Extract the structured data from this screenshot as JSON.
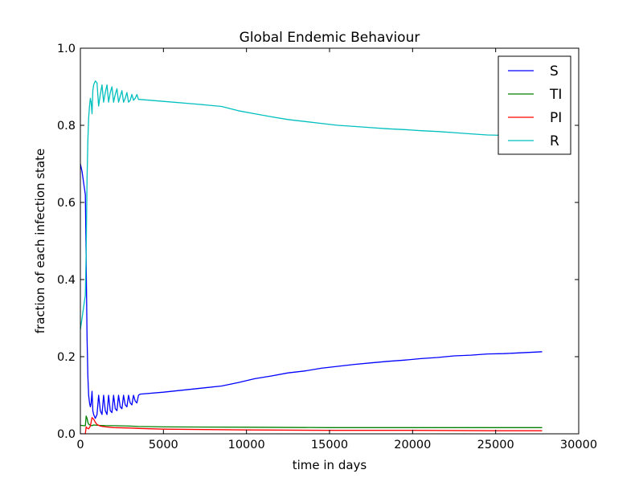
{
  "chart_data": {
    "type": "line",
    "title": "Global Endemic Behaviour",
    "xlabel": "time in days",
    "ylabel": "fraction of each infection state",
    "xlim": [
      0,
      30000
    ],
    "ylim": [
      0.0,
      1.0
    ],
    "xticks": [
      "0",
      "5000",
      "10000",
      "15000",
      "20000",
      "25000",
      "30000"
    ],
    "yticks": [
      "0.0",
      "0.2",
      "0.4",
      "0.6",
      "0.8",
      "1.0"
    ],
    "grid": false,
    "legend_position": "top-right",
    "series": [
      {
        "name": "S",
        "color": "#0000ff",
        "x": [
          0,
          100,
          200,
          300,
          350,
          400,
          450,
          500,
          550,
          600,
          650,
          700,
          750,
          800,
          900,
          1000,
          1100,
          1200,
          1300,
          1400,
          1500,
          1600,
          1700,
          1800,
          1900,
          2000,
          2100,
          2200,
          2300,
          2400,
          2500,
          2600,
          2700,
          2800,
          2900,
          3000,
          3100,
          3200,
          3300,
          3400,
          3500,
          3600,
          5000,
          7000,
          8500,
          9500,
          10500,
          11500,
          12500,
          13500,
          14500,
          15500,
          16500,
          17500,
          18500,
          19500,
          20500,
          21500,
          22500,
          23500,
          24500,
          25500,
          26500,
          27500,
          27800
        ],
        "values": [
          0.7,
          0.68,
          0.65,
          0.62,
          0.45,
          0.25,
          0.15,
          0.1,
          0.08,
          0.07,
          0.08,
          0.11,
          0.06,
          0.05,
          0.04,
          0.05,
          0.1,
          0.06,
          0.05,
          0.1,
          0.06,
          0.05,
          0.1,
          0.06,
          0.055,
          0.1,
          0.065,
          0.06,
          0.1,
          0.07,
          0.065,
          0.1,
          0.075,
          0.07,
          0.1,
          0.08,
          0.075,
          0.1,
          0.085,
          0.08,
          0.1,
          0.103,
          0.108,
          0.117,
          0.124,
          0.133,
          0.143,
          0.15,
          0.158,
          0.163,
          0.17,
          0.175,
          0.18,
          0.184,
          0.188,
          0.191,
          0.195,
          0.198,
          0.202,
          0.204,
          0.207,
          0.208,
          0.21,
          0.212,
          0.213
        ]
      },
      {
        "name": "TI",
        "color": "#008000",
        "x": [
          0,
          200,
          300,
          350,
          400,
          450,
          500,
          600,
          700,
          800,
          1000,
          1500,
          2000,
          3000,
          3500,
          5000,
          10000,
          15000,
          20000,
          25000,
          27800
        ],
        "values": [
          0.022,
          0.021,
          0.021,
          0.046,
          0.04,
          0.03,
          0.025,
          0.022,
          0.021,
          0.023,
          0.022,
          0.021,
          0.021,
          0.02,
          0.019,
          0.018,
          0.017,
          0.016,
          0.016,
          0.016,
          0.016
        ]
      },
      {
        "name": "PI",
        "color": "#ff0000",
        "x": [
          0,
          200,
          300,
          350,
          400,
          500,
          600,
          700,
          800,
          900,
          1000,
          1200,
          1500,
          2000,
          3000,
          3500,
          5000,
          10000,
          15000,
          20000,
          25000,
          27800
        ],
        "values": [
          0.0,
          0.0,
          0.0,
          0.018,
          0.015,
          0.013,
          0.02,
          0.042,
          0.038,
          0.03,
          0.024,
          0.02,
          0.018,
          0.016,
          0.015,
          0.014,
          0.012,
          0.01,
          0.009,
          0.009,
          0.008,
          0.008
        ]
      },
      {
        "name": "R",
        "color": "#00bfbf",
        "x": [
          0,
          100,
          200,
          300,
          350,
          400,
          450,
          500,
          550,
          600,
          650,
          700,
          750,
          800,
          900,
          1000,
          1100,
          1200,
          1300,
          1400,
          1500,
          1600,
          1700,
          1800,
          1900,
          2000,
          2100,
          2200,
          2300,
          2400,
          2500,
          2600,
          2700,
          2800,
          2900,
          3000,
          3100,
          3200,
          3300,
          3400,
          3500,
          3600,
          5000,
          7000,
          8500,
          9500,
          10500,
          11500,
          12500,
          13500,
          14500,
          15500,
          16500,
          17500,
          18500,
          19500,
          20500,
          21500,
          22500,
          23500,
          24500,
          25500,
          26500,
          27500,
          27800
        ],
        "values": [
          0.27,
          0.3,
          0.33,
          0.36,
          0.47,
          0.66,
          0.76,
          0.82,
          0.85,
          0.87,
          0.86,
          0.83,
          0.89,
          0.905,
          0.915,
          0.91,
          0.85,
          0.88,
          0.905,
          0.86,
          0.885,
          0.905,
          0.86,
          0.885,
          0.9,
          0.86,
          0.88,
          0.895,
          0.86,
          0.875,
          0.89,
          0.86,
          0.87,
          0.885,
          0.86,
          0.865,
          0.88,
          0.865,
          0.87,
          0.88,
          0.867,
          0.867,
          0.862,
          0.855,
          0.849,
          0.838,
          0.83,
          0.822,
          0.815,
          0.81,
          0.805,
          0.8,
          0.797,
          0.794,
          0.791,
          0.789,
          0.786,
          0.784,
          0.781,
          0.778,
          0.775,
          0.774,
          0.772,
          0.771,
          0.77
        ]
      }
    ]
  }
}
